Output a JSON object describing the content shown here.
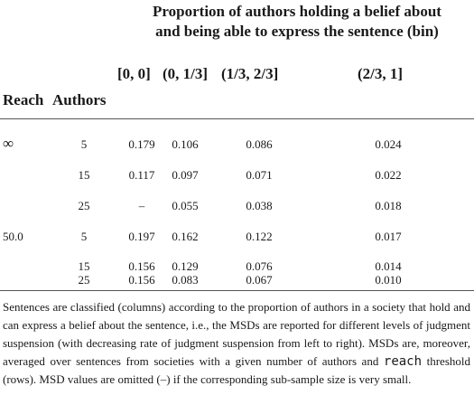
{
  "table": {
    "spanning_header": {
      "line1": "Proportion of authors holding a belief about",
      "line2": "and being able to express the sentence (bin)"
    },
    "bins": [
      "[0, 0]",
      "(0, 1/3]",
      "(1/3, 2/3]",
      "(2/3, 1]"
    ],
    "row_headers": {
      "reach": "Reach",
      "authors": "Authors"
    },
    "rows": [
      {
        "reach": "∞",
        "authors": "5",
        "values": [
          "0.179",
          "0.106",
          "0.086",
          "0.024"
        ]
      },
      {
        "reach": "",
        "authors": "15",
        "values": [
          "0.117",
          "0.097",
          "0.071",
          "0.022"
        ]
      },
      {
        "reach": "",
        "authors": "25",
        "values": [
          "–",
          "0.055",
          "0.038",
          "0.018"
        ]
      },
      {
        "reach": "50.0",
        "authors": "5",
        "values": [
          "0.197",
          "0.162",
          "0.122",
          "0.017"
        ]
      },
      {
        "reach": "",
        "authors": "15",
        "values": [
          "0.156",
          "0.129",
          "0.076",
          "0.014"
        ]
      },
      {
        "reach": "",
        "authors": "25",
        "values": [
          "0.156",
          "0.083",
          "0.067",
          "0.010"
        ]
      }
    ]
  },
  "footnote": {
    "part1": "Sentences are classified (columns) according to the proportion of authors in a society that hold and can express a belief about the sentence, i.e., the MSDs are reported for different levels of judgment suspension (with decreasing rate of judgment suspension from left to right). MSDs are, moreover, averaged over sentences from societies with a given number of authors and ",
    "code": "reach",
    "part2": " threshold (rows). MSD values are omitted (–) if the corresponding sub-sample size is very small."
  }
}
